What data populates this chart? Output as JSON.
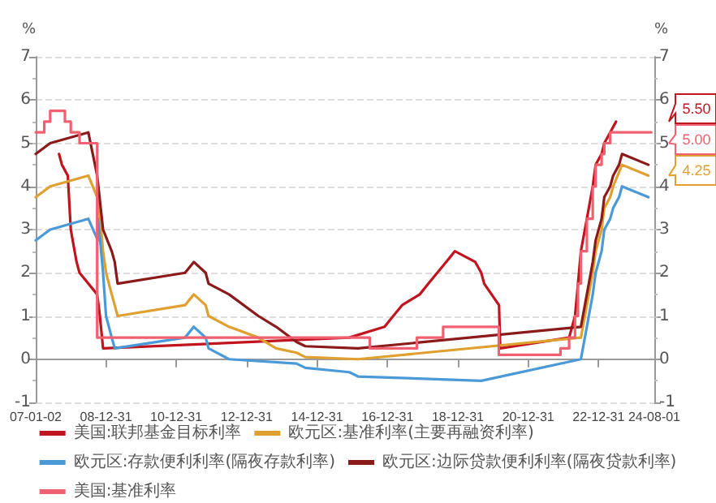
{
  "chart_data": {
    "type": "line",
    "ylabel": "%",
    "y2label": "%",
    "xlim": [
      "2007-01-02",
      "2024-08-01"
    ],
    "xticks": [
      {
        "value": "2007-01-02",
        "label": "07-01-02"
      },
      {
        "value": "2008-12-31",
        "label": "08-12-31"
      },
      {
        "value": "2010-12-31",
        "label": "10-12-31"
      },
      {
        "value": "2012-12-31",
        "label": "12-12-31"
      },
      {
        "value": "2014-12-31",
        "label": "14-12-31"
      },
      {
        "value": "2016-12-31",
        "label": "16-12-31"
      },
      {
        "value": "2018-12-31",
        "label": "18-12-31"
      },
      {
        "value": "2020-12-31",
        "label": "20-12-31"
      },
      {
        "value": "2022-12-31",
        "label": "22-12-31"
      },
      {
        "value": "2024-08-01",
        "label": "24-08-01"
      }
    ],
    "ylim": [
      -1,
      7
    ],
    "yticks": [
      -1,
      0,
      1,
      2,
      3,
      4,
      5,
      6,
      7
    ],
    "y2lim": [
      -1,
      7
    ],
    "y2ticks": [
      -1,
      0,
      1,
      2,
      3,
      4,
      5,
      6,
      7
    ],
    "grid": "y",
    "legend": "bottom",
    "line_style": "solid",
    "marker": "none",
    "series": [
      {
        "name": "美国:联邦基金目标利率",
        "color": "#c0141e",
        "x": [
          "2007-09",
          "2007-10",
          "2007-12",
          "2008-01",
          "2008-03",
          "2008-04",
          "2008-10",
          "2008-10-29",
          "2008-12",
          "2015-12",
          "2016-12",
          "2017-03",
          "2017-06",
          "2017-12",
          "2018-03",
          "2018-06",
          "2018-09",
          "2018-12",
          "2019-07",
          "2019-09",
          "2019-10",
          "2020-03-03",
          "2020-03-16",
          "2022-03",
          "2022-05",
          "2022-06",
          "2022-07",
          "2022-09",
          "2022-11",
          "2022-12",
          "2023-02",
          "2023-03",
          "2023-05",
          "2023-07"
        ],
        "values": [
          4.75,
          4.5,
          4.25,
          3.0,
          2.25,
          2.0,
          1.5,
          1.0,
          0.25,
          0.5,
          0.75,
          1.0,
          1.25,
          1.5,
          1.75,
          2.0,
          2.25,
          2.5,
          2.25,
          2.0,
          1.75,
          1.25,
          0.25,
          0.5,
          1.0,
          1.75,
          2.5,
          3.25,
          4.0,
          4.5,
          4.75,
          5.0,
          5.25,
          5.5
        ]
      },
      {
        "name": "欧元区:基准利率(主要再融资利率)",
        "color": "#e0a030",
        "x": [
          "2007-01-02",
          "2007-06",
          "2008-07",
          "2008-10",
          "2008-11",
          "2008-12",
          "2009-01",
          "2009-03",
          "2009-04",
          "2009-05",
          "2011-04",
          "2011-07",
          "2011-11",
          "2011-12",
          "2012-07",
          "2013-05",
          "2013-11",
          "2014-06",
          "2014-09",
          "2016-03",
          "2022-07",
          "2022-09",
          "2022-11",
          "2022-12",
          "2023-02",
          "2023-03",
          "2023-05",
          "2023-06",
          "2023-09",
          "2024-06"
        ],
        "values": [
          3.75,
          4.0,
          4.25,
          3.75,
          3.25,
          2.5,
          2.0,
          1.5,
          1.25,
          1.0,
          1.25,
          1.5,
          1.25,
          1.0,
          0.75,
          0.5,
          0.25,
          0.15,
          0.05,
          0,
          0.5,
          1.25,
          2.0,
          2.5,
          3.0,
          3.5,
          3.75,
          4.0,
          4.5,
          4.25
        ]
      },
      {
        "name": "欧元区:存款便利利率(隔夜存款利率)",
        "color": "#4a9ad8",
        "x": [
          "2007-01-02",
          "2007-06",
          "2008-07",
          "2008-10-08",
          "2008-10-09",
          "2008-11",
          "2008-12",
          "2009-01",
          "2009-03",
          "2009-04",
          "2011-04",
          "2011-07",
          "2011-11",
          "2011-12",
          "2012-07",
          "2014-06",
          "2014-09",
          "2015-12",
          "2016-03",
          "2019-09",
          "2022-07",
          "2022-09",
          "2022-11",
          "2022-12",
          "2023-02",
          "2023-03",
          "2023-05",
          "2023-06",
          "2023-08",
          "2023-09",
          "2024-06"
        ],
        "values": [
          2.75,
          3.0,
          3.25,
          2.75,
          3.25,
          2.75,
          2.0,
          1.0,
          0.5,
          0.25,
          0.5,
          0.75,
          0.5,
          0.25,
          0,
          -0.1,
          -0.2,
          -0.3,
          -0.4,
          -0.5,
          0,
          0.75,
          1.5,
          2.0,
          2.5,
          3.0,
          3.25,
          3.5,
          3.75,
          4.0,
          3.75
        ]
      },
      {
        "name": "欧元区:边际贷款便利利率(隔夜贷款利率)",
        "color": "#8b1a1a",
        "x": [
          "2007-01-02",
          "2007-06",
          "2008-07",
          "2008-10",
          "2008-12",
          "2009-03",
          "2009-04",
          "2009-05",
          "2011-04",
          "2011-07",
          "2011-11",
          "2011-12",
          "2012-07",
          "2013-05",
          "2013-11",
          "2014-06",
          "2014-09",
          "2016-03",
          "2022-07",
          "2022-09",
          "2022-11",
          "2022-12",
          "2023-02",
          "2023-03",
          "2023-05",
          "2023-06",
          "2023-08",
          "2023-09",
          "2024-06"
        ],
        "values": [
          4.75,
          5.0,
          5.25,
          4.25,
          3.0,
          2.5,
          2.25,
          1.75,
          2.0,
          2.25,
          2.0,
          1.75,
          1.5,
          1.0,
          0.75,
          0.4,
          0.3,
          0.25,
          0.75,
          1.5,
          2.25,
          2.75,
          3.25,
          3.75,
          4.0,
          4.25,
          4.5,
          4.75,
          4.5
        ]
      },
      {
        "name": "美国:基准利率",
        "type": "step",
        "color": "#f06070",
        "x": [
          "2007-01-02",
          "2007-04",
          "2007-06",
          "2007-11",
          "2008-01",
          "2008-04",
          "2008-10",
          "2016-07",
          "2017-11",
          "2018-08",
          "2020-03",
          "2021-12",
          "2022-03",
          "2022-05",
          "2022-06",
          "2022-07",
          "2022-09",
          "2022-11",
          "2022-12",
          "2023-02",
          "2023-03",
          "2023-05",
          "2024-07"
        ],
        "values": [
          5.25,
          5.5,
          5.75,
          5.5,
          5.25,
          5.0,
          0.5,
          0.25,
          0.5,
          0.75,
          0.1,
          0.25,
          0.5,
          1.0,
          1.75,
          2.5,
          3.25,
          4.0,
          4.5,
          4.75,
          5.0,
          5.25,
          5.25
        ]
      }
    ],
    "annotations": [
      "5.50",
      "5.00",
      "4.25"
    ]
  }
}
